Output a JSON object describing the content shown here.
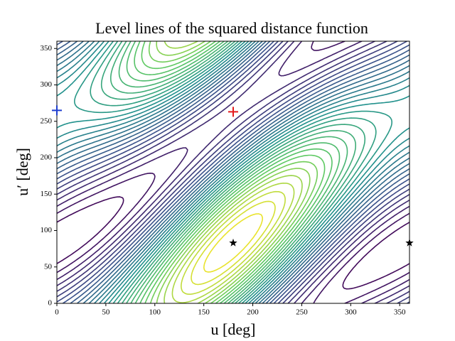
{
  "chart_data": {
    "type": "contour",
    "title": "Level lines of the squared distance function",
    "x_label": "u [deg]",
    "y_label": "u′ [deg]",
    "xlim": [
      0,
      360
    ],
    "ylim": [
      0,
      360
    ],
    "xticks": [
      0,
      50,
      100,
      150,
      200,
      250,
      300,
      350
    ],
    "yticks": [
      0,
      50,
      100,
      150,
      200,
      250,
      300,
      350
    ],
    "colormap": [
      "#440154",
      "#3b528b",
      "#21918c",
      "#5ec962",
      "#fde725"
    ],
    "markers": [
      {
        "x": 180,
        "y": 263,
        "marker": "+",
        "color": "#e41a1c"
      },
      {
        "x": 0,
        "y": 265,
        "marker": "+",
        "color": "#1f3fd0"
      },
      {
        "x": 180,
        "y": 83,
        "marker": "*",
        "color": "#000000"
      },
      {
        "x": 360,
        "y": 83,
        "marker": "*",
        "color": "#000000"
      }
    ]
  }
}
